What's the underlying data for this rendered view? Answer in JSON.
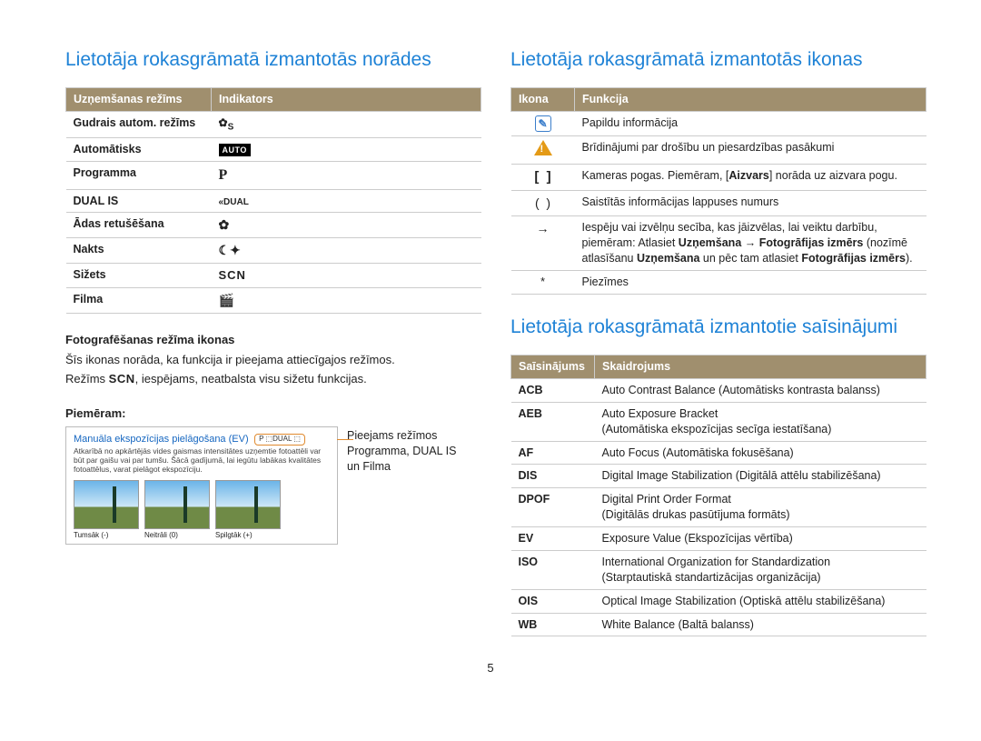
{
  "page_number": "5",
  "left": {
    "title": "Lietotāja rokasgrāmatā izmantotās norādes",
    "table1": {
      "headers": [
        "Uzņemšanas režīms",
        "Indikators"
      ],
      "rows": [
        {
          "mode": "Gudrais autom. režīms",
          "icon": "smart",
          "icon_text": "S"
        },
        {
          "mode": "Automātisks",
          "icon": "auto",
          "icon_text": "AUTO"
        },
        {
          "mode": "Programma",
          "icon": "p",
          "icon_text": "P"
        },
        {
          "mode": "DUAL IS",
          "icon": "dual",
          "icon_text": "DUAL"
        },
        {
          "mode": "Ādas retušēšana",
          "icon": "face",
          "icon_text": "✿"
        },
        {
          "mode": "Nakts",
          "icon": "night",
          "icon_text": "☾"
        },
        {
          "mode": "Sižets",
          "icon": "scn",
          "icon_text": "SCN"
        },
        {
          "mode": "Filma",
          "icon": "film",
          "icon_text": "🎬"
        }
      ]
    },
    "sub1_title": "Fotografēšanas režīma ikonas",
    "sub1_text_a": "Šīs ikonas norāda, ka funkcija ir pieejama attiecīgajos režīmos.",
    "sub1_text_b_pre": "Režīms ",
    "sub1_text_b_scn": "SCN",
    "sub1_text_b_post": ", iespējams, neatbalsta visu sižetu funkcijas.",
    "example_label": "Piemēram:",
    "example_title": "Manuāla ekspozīcijas pielāgošana (EV)",
    "example_desc": "Atkarībā no apkārtējās vides gaismas intensitātes uzņemtie fotoattēli var būt par gaišu vai par tumšu. Šācā gadījumā, lai iegūtu labākas kvalitātes fotoattēlus, varat pielāgot ekspozīciju.",
    "example_badge": "P ⬚DUAL ⬚",
    "thumbs": [
      {
        "label": "Tumsāk (-)"
      },
      {
        "label": "Neitrāli (0)"
      },
      {
        "label": "Spilgtāk (+)"
      }
    ],
    "example_side_l1": "Pieejams režīmos",
    "example_side_l2": "Programma, DUAL IS",
    "example_side_l3": "un Filma"
  },
  "right": {
    "title_icons": "Lietotāja rokasgrāmatā izmantotās ikonas",
    "table2": {
      "headers": [
        "Ikona",
        "Funkcija"
      ],
      "rows": [
        {
          "icon": "note",
          "text": "Papildu informācija"
        },
        {
          "icon": "warn",
          "text": "Brīdinājumi par drošību un piesardzības pasākumi"
        },
        {
          "icon": "bracket",
          "html": "Kameras pogas. Piemēram, [<b>Aizvars</b>] norāda uz aizvara pogu."
        },
        {
          "icon": "paren",
          "text": "Saistītās informācijas lappuses numurs"
        },
        {
          "icon": "arrow",
          "html": "Iespēju vai izvēlņu secība, kas jāizvēlas, lai veiktu darbību, piemēram: Atlasiet <b>Uzņemšana</b> → <b>Fotogrāfijas izmērs</b> (nozīmē atlasīšanu <b>Uzņemšana</b> un pēc tam atlasiet <b>Fotogrāfijas izmērs</b>)."
        },
        {
          "icon": "star",
          "text": "Piezīmes"
        }
      ]
    },
    "title_abbr": "Lietotāja rokasgrāmatā izmantotie saīsinājumi",
    "table3": {
      "headers": [
        "Saīsinājums",
        "Skaidrojums"
      ],
      "rows": [
        {
          "abbr": "ACB",
          "desc": "Auto Contrast Balance (Automātisks kontrasta balanss)"
        },
        {
          "abbr": "AEB",
          "desc": "Auto Exposure Bracket\n(Automātiska ekspozīcijas secīga iestatīšana)"
        },
        {
          "abbr": "AF",
          "desc": "Auto Focus (Automātiska fokusēšana)"
        },
        {
          "abbr": "DIS",
          "desc": "Digital Image Stabilization (Digitālā attēlu stabilizēšana)"
        },
        {
          "abbr": "DPOF",
          "desc": "Digital Print Order Format\n(Digitālās drukas pasūtījuma formāts)"
        },
        {
          "abbr": "EV",
          "desc": "Exposure Value (Ekspozīcijas vērtība)"
        },
        {
          "abbr": "ISO",
          "desc": "International Organization for Standardization\n(Starptautiskā standartizācijas organizācija)"
        },
        {
          "abbr": "OIS",
          "desc": "Optical Image Stabilization (Optiskā attēlu stabilizēšana)"
        },
        {
          "abbr": "WB",
          "desc": "White Balance (Baltā balanss)"
        }
      ]
    }
  },
  "colors": {
    "heading": "#1e82d6",
    "th_bg": "#a08f6e",
    "th_fg": "#ffffff",
    "border": "#cccccc",
    "callout": "#e08a2e"
  }
}
